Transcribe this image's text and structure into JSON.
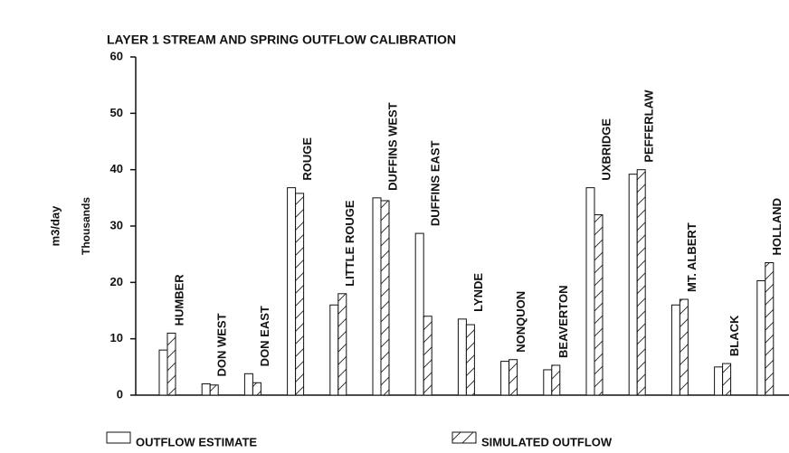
{
  "chart_data": {
    "type": "bar",
    "title": "LAYER 1 STREAM AND SPRING OUTFLOW CALIBRATION",
    "y_label": "m3/day",
    "y_unit": "Thousands",
    "categories": [
      "HUMBER",
      "DON WEST",
      "DON EAST",
      "ROUGE",
      "LITTLE ROUGE",
      "DUFFINS WEST",
      "DUFFINS EAST",
      "LYNDE",
      "NONQUON",
      "BEAVERTON",
      "UXBRIDGE",
      "PEFFERLAW",
      "MT. ALBERT",
      "BLACK",
      "HOLLAND"
    ],
    "series": [
      {
        "name": "OUTFLOW ESTIMATE",
        "color": "#ffffff",
        "hatch": false,
        "values": [
          8,
          2,
          3.8,
          36.8,
          16,
          35,
          28.7,
          13.5,
          6,
          4.5,
          36.8,
          39.2,
          16,
          5,
          20.3
        ]
      },
      {
        "name": "SIMULATED OUTFLOW",
        "color": "#ffffff",
        "hatch": true,
        "values": [
          11,
          1.8,
          2.2,
          35.8,
          18,
          34.5,
          14,
          12.5,
          6.3,
          5.3,
          32,
          40,
          17,
          5.6,
          23.5
        ]
      }
    ],
    "ylim": [
      0,
      60
    ],
    "yticks": [
      0,
      10,
      20,
      30,
      40,
      50,
      60
    ]
  }
}
